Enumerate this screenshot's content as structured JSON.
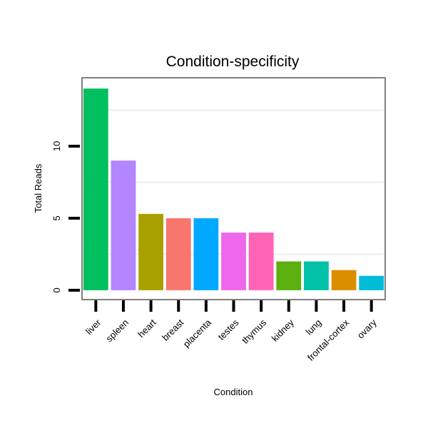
{
  "chart_data": {
    "type": "bar",
    "title": "Condition-specificity",
    "xlabel": "Condition",
    "ylabel": "Total Reads",
    "categories": [
      "liver",
      "spleen",
      "heart",
      "breast",
      "placenta",
      "testes",
      "thymus",
      "kidney",
      "lung",
      "frontal-cortex",
      "ovary"
    ],
    "values": [
      14,
      9,
      5.3,
      5,
      5,
      4,
      4,
      2,
      2,
      1.4,
      1
    ],
    "colors": [
      "#00BF5F",
      "#B385FF",
      "#A8A000",
      "#F8766D",
      "#00A9FF",
      "#EF67EB",
      "#FF63B6",
      "#5BAF0E",
      "#00C1A8",
      "#DB8E00",
      "#00BCD8"
    ],
    "yticks": [
      0,
      5,
      10
    ],
    "ylim": [
      -0.65,
      14.75
    ],
    "grid": true,
    "legend": "none"
  }
}
